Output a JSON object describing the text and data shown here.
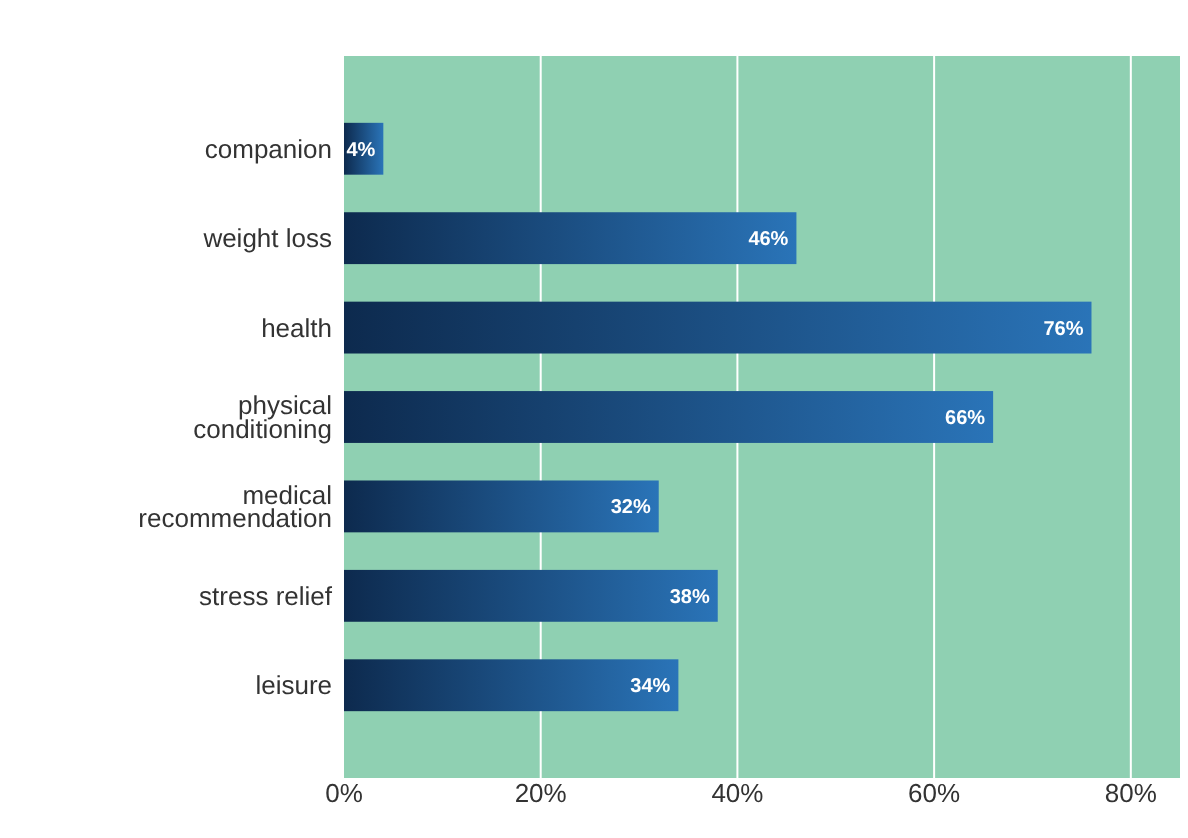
{
  "chart_data": {
    "type": "bar",
    "orientation": "horizontal",
    "categories": [
      "companion",
      "weight loss",
      "health",
      "physical conditioning",
      "medical recommendation",
      "stress relief",
      "leisure"
    ],
    "values": [
      4,
      46,
      76,
      66,
      32,
      38,
      34
    ],
    "value_labels": [
      "4%",
      "46%",
      "76%",
      "66%",
      "32%",
      "38%",
      "34%"
    ],
    "color": "#2a74b8",
    "xlim": [
      0,
      85
    ],
    "xticks": [
      {
        "value": 0,
        "label": "0%"
      },
      {
        "value": 20,
        "label": "20%"
      },
      {
        "value": 40,
        "label": "40%"
      },
      {
        "value": 60,
        "label": "60%"
      },
      {
        "value": 80,
        "label": "80%"
      }
    ],
    "grid": "x"
  }
}
